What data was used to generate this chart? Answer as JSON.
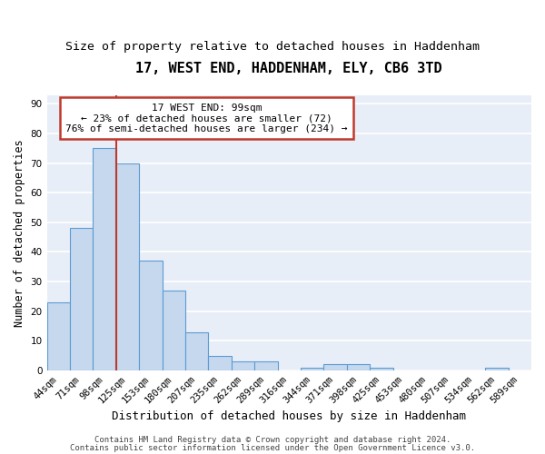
{
  "title": "17, WEST END, HADDENHAM, ELY, CB6 3TD",
  "subtitle": "Size of property relative to detached houses in Haddenham",
  "xlabel": "Distribution of detached houses by size in Haddenham",
  "ylabel": "Number of detached properties",
  "categories": [
    "44sqm",
    "71sqm",
    "98sqm",
    "125sqm",
    "153sqm",
    "180sqm",
    "207sqm",
    "235sqm",
    "262sqm",
    "289sqm",
    "316sqm",
    "344sqm",
    "371sqm",
    "398sqm",
    "425sqm",
    "453sqm",
    "480sqm",
    "507sqm",
    "534sqm",
    "562sqm",
    "589sqm"
  ],
  "values": [
    23,
    48,
    75,
    70,
    37,
    27,
    13,
    5,
    3,
    3,
    0,
    1,
    2,
    2,
    1,
    0,
    0,
    0,
    0,
    1,
    0
  ],
  "bar_color": "#c5d8ed",
  "bar_edge_color": "#5b9bd5",
  "vline_color": "#c0392b",
  "annotation_line1": "17 WEST END: 99sqm",
  "annotation_line2": "← 23% of detached houses are smaller (72)",
  "annotation_line3": "76% of semi-detached houses are larger (234) →",
  "annotation_box_color": "white",
  "annotation_box_edge_color": "#c0392b",
  "ylim": [
    0,
    93
  ],
  "yticks": [
    0,
    10,
    20,
    30,
    40,
    50,
    60,
    70,
    80,
    90
  ],
  "footer_line1": "Contains HM Land Registry data © Crown copyright and database right 2024.",
  "footer_line2": "Contains public sector information licensed under the Open Government Licence v3.0.",
  "background_color": "#e8eef7",
  "grid_color": "white",
  "title_fontsize": 11,
  "subtitle_fontsize": 9.5,
  "xlabel_fontsize": 9,
  "ylabel_fontsize": 8.5,
  "tick_fontsize": 7.5,
  "annotation_fontsize": 8,
  "footer_fontsize": 6.5
}
